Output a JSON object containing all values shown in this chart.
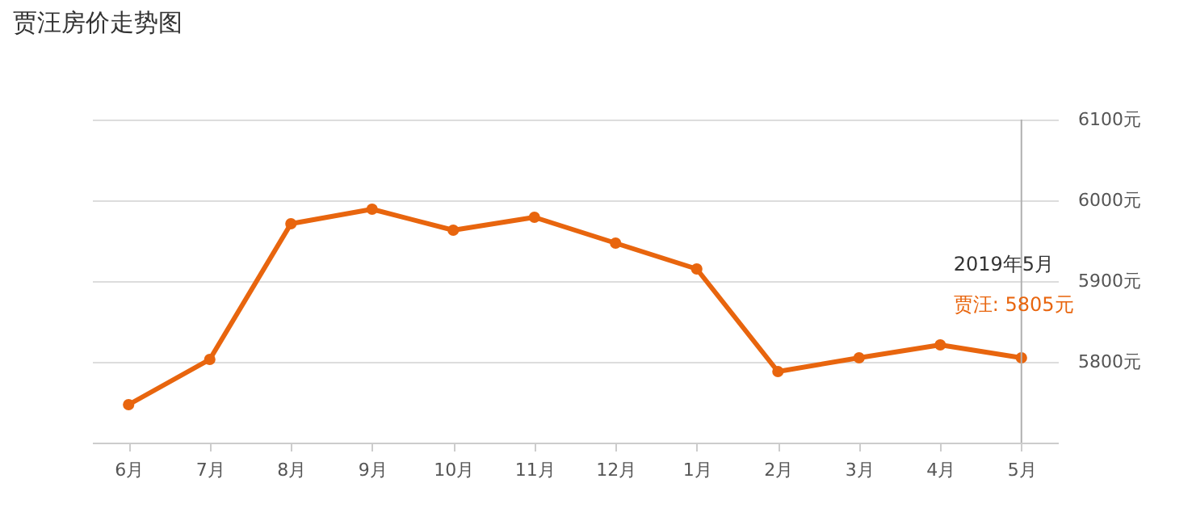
{
  "chart_data": {
    "type": "line",
    "title": "贾汪房价走势图",
    "categories": [
      "6月",
      "7月",
      "8月",
      "9月",
      "10月",
      "11月",
      "12月",
      "1月",
      "2月",
      "3月",
      "4月",
      "5月"
    ],
    "series": [
      {
        "color": "#e8650e",
        "values": [
          5747,
          5803,
          5971,
          5989,
          5963,
          5979,
          5947,
          5915,
          5788,
          5805,
          5821,
          5805
        ]
      }
    ],
    "ylim": [
      5700,
      6100
    ],
    "yticks": [
      {
        "value": 5800,
        "label": "5800元"
      },
      {
        "value": 5900,
        "label": "5900元"
      },
      {
        "value": 6000,
        "label": "6000元"
      },
      {
        "value": 6100,
        "label": "6100元"
      }
    ],
    "grid": "y",
    "legend": false,
    "marker": "circle",
    "line_style": "solid",
    "ref_lines": [
      {
        "axis": "x",
        "value": "5月",
        "color": "#b0b0b0"
      }
    ],
    "annotations": [
      "2019年5月",
      "贾汪:  5805元"
    ]
  }
}
